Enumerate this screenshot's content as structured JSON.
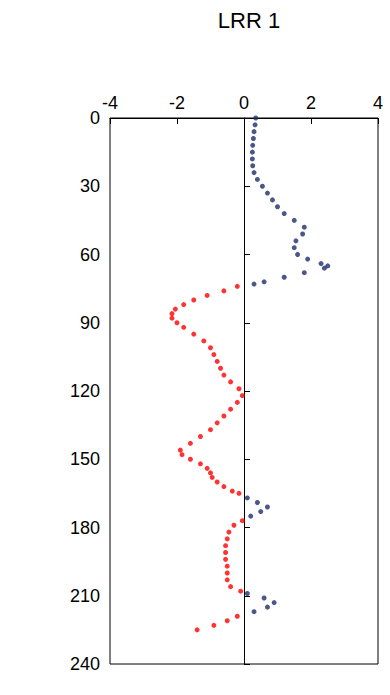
{
  "chart_data": {
    "type": "scatter",
    "title": "LRR 1",
    "xlim": [
      -4,
      4
    ],
    "xticks": [
      -4,
      -2,
      0,
      2,
      4
    ],
    "ylim": [
      0,
      240
    ],
    "yticks": [
      0,
      30,
      60,
      90,
      120,
      150,
      180,
      210,
      240
    ],
    "grid": false,
    "marker": "circle",
    "series": [
      {
        "color": "#1f2d6b",
        "y": [
          0,
          3,
          6,
          9,
          12,
          15,
          18,
          21,
          24,
          27,
          30,
          33,
          36,
          39,
          42,
          45,
          48,
          51,
          54,
          57,
          60,
          62,
          64,
          65,
          66,
          68,
          70,
          72,
          73,
          167,
          169,
          171,
          173,
          175,
          209,
          211,
          213,
          215,
          217
        ],
        "x": [
          0.35,
          0.33,
          0.3,
          0.28,
          0.26,
          0.25,
          0.25,
          0.26,
          0.3,
          0.4,
          0.55,
          0.7,
          0.85,
          1.0,
          1.2,
          1.5,
          1.8,
          1.75,
          1.55,
          1.5,
          1.6,
          1.9,
          2.3,
          2.5,
          2.4,
          1.8,
          1.2,
          0.6,
          0.3,
          0.1,
          0.4,
          0.7,
          0.5,
          0.2,
          0.1,
          0.6,
          0.9,
          0.7,
          0.3
        ]
      },
      {
        "color": "#ff0000",
        "y": [
          74,
          76,
          78,
          80,
          82,
          84,
          86,
          88,
          90,
          92,
          95,
          98,
          101,
          104,
          107,
          110,
          113,
          116,
          119,
          122,
          125,
          128,
          131,
          134,
          137,
          140,
          143,
          146,
          148,
          150,
          152,
          154,
          156,
          158,
          160,
          162,
          164,
          165,
          177,
          179,
          182,
          185,
          188,
          191,
          194,
          197,
          200,
          203,
          206,
          208,
          219,
          221,
          223,
          225
        ],
        "x": [
          -0.2,
          -0.6,
          -1.1,
          -1.5,
          -1.8,
          -2.05,
          -2.15,
          -2.15,
          -2.0,
          -1.8,
          -1.5,
          -1.2,
          -1.0,
          -0.9,
          -0.8,
          -0.7,
          -0.6,
          -0.4,
          -0.15,
          -0.05,
          -0.2,
          -0.4,
          -0.6,
          -0.8,
          -1.0,
          -1.3,
          -1.6,
          -1.9,
          -1.85,
          -1.6,
          -1.3,
          -1.1,
          -1.0,
          -0.95,
          -0.8,
          -0.6,
          -0.35,
          -0.15,
          -0.05,
          -0.3,
          -0.45,
          -0.5,
          -0.55,
          -0.55,
          -0.55,
          -0.5,
          -0.5,
          -0.5,
          -0.4,
          -0.1,
          -0.2,
          -0.5,
          -0.9,
          -1.4
        ]
      }
    ]
  }
}
